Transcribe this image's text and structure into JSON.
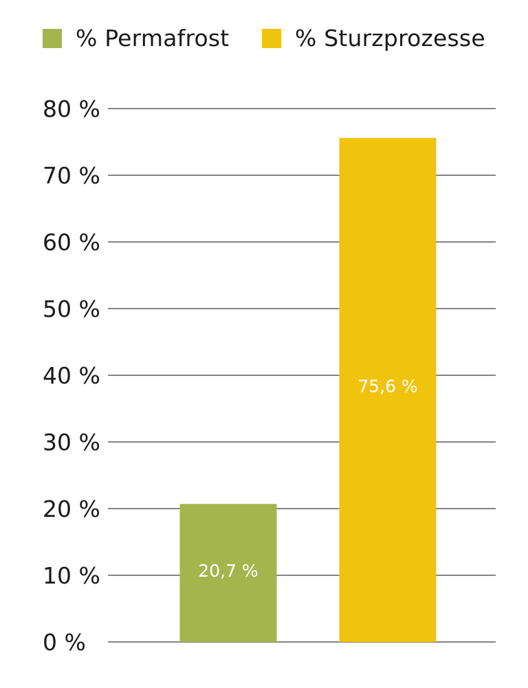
{
  "chart_data": {
    "type": "bar",
    "title": "",
    "xlabel": "",
    "ylabel": "",
    "categories": [
      "% Permafrost",
      "% Sturzprozesse"
    ],
    "values": [
      20.7,
      75.6
    ],
    "data_labels": [
      "20,7 %",
      "75,6 %"
    ],
    "ylim": [
      0,
      80
    ],
    "yticks": [
      0,
      10,
      20,
      30,
      40,
      50,
      60,
      70,
      80
    ],
    "ytick_labels": [
      "0 %",
      "10 %",
      "20 %",
      "30 %",
      "40 %",
      "50 %",
      "60 %",
      "70 %",
      "80 %"
    ],
    "grid": true,
    "legend_position": "top",
    "legend": [
      {
        "label": "% Permafrost",
        "color": "#a5b54e"
      },
      {
        "label": "% Sturzprozesse",
        "color": "#f0c30f"
      }
    ],
    "colors": [
      "#a5b54e",
      "#f0c30f"
    ]
  }
}
